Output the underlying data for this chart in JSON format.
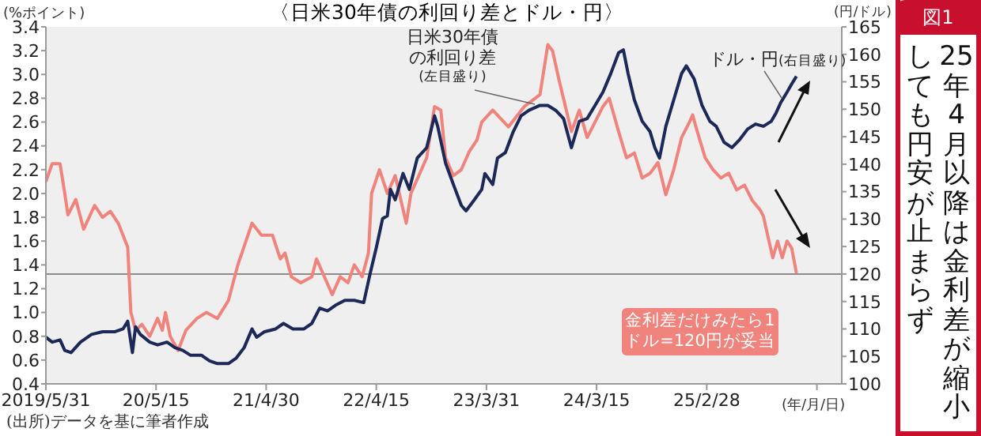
{
  "chart_data": {
    "type": "line",
    "title": "〈日米30年債の利回り差とドル・円〉",
    "ylabel": "(%ポイント)",
    "y2label": "(円/ドル)",
    "xlabel": "(年/月/日)",
    "annotations": [
      "(左目盛り)",
      "(右目盛り)",
      "図1",
      "25年4月以降は金利差が縮小しても円安が止まらず",
      "(出所)データを基に筆者作成"
    ],
    "xlim": [
      "2019-05-31",
      "2026-05-03"
    ],
    "xticks": [
      {
        "value": "2019-05-31",
        "label": "2019/5/31"
      },
      {
        "value": "2020-05-15",
        "label": "20/5/15"
      },
      {
        "value": "2021-04-30",
        "label": "21/4/30"
      },
      {
        "value": "2022-04-15",
        "label": "22/4/15"
      },
      {
        "value": "2023-03-31",
        "label": "23/3/31"
      },
      {
        "value": "2024-03-15",
        "label": "24/3/15"
      },
      {
        "value": "2025-02-28",
        "label": "25/2/28"
      },
      {
        "value": "2026-02-13",
        "label": null
      }
    ],
    "ylim": [
      0.4,
      3.4
    ],
    "yticks": [
      0.4,
      0.6,
      0.8,
      {
        "value": 1,
        "label": "1.0"
      },
      1.2,
      1.4,
      1.6,
      1.8,
      {
        "value": 2,
        "label": "2.0"
      },
      2.2,
      2.4,
      2.6,
      2.8,
      {
        "value": 3,
        "label": "3.0"
      },
      3.2,
      3.4
    ],
    "y2lim": [
      100,
      165
    ],
    "y2ticks": [
      100,
      105,
      110,
      115,
      120,
      125,
      130,
      135,
      140,
      145,
      150,
      155,
      160,
      165
    ],
    "ref_lines": [
      {
        "axis": "y2",
        "value": 120,
        "label": "金利差だけみたら1ドル=120円が妥当",
        "color": "#8c8c8c"
      }
    ],
    "legend": false,
    "grid": false,
    "series": [
      {
        "name": "日米30年債の利回り差",
        "color": "#f0837c",
        "x": [
          "2019-05-31",
          "2019-06-20",
          "2019-07-15",
          "2019-07-30",
          "2019-08-09",
          "2019-09-03",
          "2019-09-28",
          "2019-11-02",
          "2019-11-27",
          "2019-12-22",
          "2020-01-16",
          "2020-01-31",
          "2020-02-15",
          "2020-02-25",
          "2020-03-11",
          "2020-03-31",
          "2020-04-25",
          "2020-05-20",
          "2020-06-04",
          "2020-06-14",
          "2020-06-29",
          "2020-07-24",
          "2020-08-18",
          "2020-09-22",
          "2020-10-22",
          "2020-11-26",
          "2020-12-31",
          "2021-01-30",
          "2021-03-16",
          "2021-04-15",
          "2021-05-20",
          "2021-06-14",
          "2021-06-29",
          "2021-07-19",
          "2021-08-18",
          "2021-09-22",
          "2021-10-07",
          "2021-11-01",
          "2021-11-26",
          "2021-12-21",
          "2022-01-15",
          "2022-02-04",
          "2022-03-01",
          "2022-03-21",
          "2022-03-31",
          "2022-04-25",
          "2022-05-20",
          "2022-06-14",
          "2022-07-19",
          "2022-08-03",
          "2022-08-28",
          "2022-09-22",
          "2022-10-17",
          "2022-11-06",
          "2022-11-21",
          "2022-12-16",
          "2023-01-10",
          "2023-02-04",
          "2023-03-01",
          "2023-03-16",
          "2023-04-20",
          "2023-06-09",
          "2023-07-29",
          "2023-09-17",
          "2023-10-12",
          "2023-10-27",
          "2023-11-16",
          "2023-12-26",
          "2024-01-20",
          "2024-02-14",
          "2024-03-10",
          "2024-04-04",
          "2024-04-24",
          "2024-05-24",
          "2024-06-18",
          "2024-07-13",
          "2024-08-07",
          "2024-09-01",
          "2024-09-26",
          "2024-10-21",
          "2024-11-15",
          "2024-12-10",
          "2025-01-04",
          "2025-01-14",
          "2025-01-29",
          "2025-02-23",
          "2025-03-20",
          "2025-04-14",
          "2025-05-09",
          "2025-06-03",
          "2025-06-28",
          "2025-07-23",
          "2025-08-17",
          "2025-08-27",
          "2025-09-11",
          "2025-09-26",
          "2025-10-11",
          "2025-10-26",
          "2025-11-10",
          "2025-11-25",
          "2025-12-10"
        ],
        "values": [
          2.1,
          2.25,
          2.25,
          2.0,
          1.82,
          1.95,
          1.7,
          1.9,
          1.8,
          1.85,
          1.75,
          1.65,
          1.55,
          1.0,
          0.85,
          0.9,
          0.8,
          0.95,
          0.85,
          1.0,
          0.8,
          0.68,
          0.85,
          0.95,
          1.0,
          0.95,
          1.1,
          1.4,
          1.75,
          1.65,
          1.65,
          1.45,
          1.5,
          1.3,
          1.25,
          1.3,
          1.45,
          1.3,
          1.15,
          1.3,
          1.25,
          1.4,
          1.3,
          1.5,
          2.0,
          2.2,
          2.0,
          2.15,
          1.75,
          2.0,
          2.15,
          2.3,
          2.73,
          2.7,
          2.3,
          2.15,
          2.2,
          2.35,
          2.45,
          2.6,
          2.7,
          2.56,
          2.73,
          2.83,
          3.25,
          3.2,
          2.96,
          2.52,
          2.7,
          2.47,
          2.6,
          2.73,
          2.8,
          2.52,
          2.3,
          2.34,
          2.13,
          2.17,
          2.26,
          1.99,
          2.2,
          2.47,
          2.6,
          2.66,
          2.52,
          2.3,
          2.2,
          2.13,
          2.17,
          2.03,
          2.07,
          1.94,
          1.86,
          1.81,
          1.63,
          1.46,
          1.6,
          1.46,
          1.6,
          1.54,
          1.33
        ]
      },
      {
        "name": "ドル・円",
        "color": "#1c2857",
        "axis": "y2",
        "x": [
          "2019-05-31",
          "2019-06-20",
          "2019-07-15",
          "2019-07-30",
          "2019-08-19",
          "2019-09-18",
          "2019-10-23",
          "2019-11-27",
          "2020-01-06",
          "2020-01-31",
          "2020-02-15",
          "2020-03-01",
          "2020-03-11",
          "2020-03-26",
          "2020-04-25",
          "2020-05-20",
          "2020-06-19",
          "2020-07-14",
          "2020-08-08",
          "2020-09-02",
          "2020-10-07",
          "2020-11-01",
          "2020-11-26",
          "2020-12-31",
          "2021-01-25",
          "2021-02-19",
          "2021-03-16",
          "2021-03-31",
          "2021-04-25",
          "2021-05-30",
          "2021-06-24",
          "2021-07-24",
          "2021-08-28",
          "2021-09-22",
          "2021-10-17",
          "2021-11-11",
          "2021-12-06",
          "2022-01-05",
          "2022-02-04",
          "2022-03-06",
          "2022-03-26",
          "2022-04-15",
          "2022-05-05",
          "2022-05-20",
          "2022-05-30",
          "2022-06-14",
          "2022-07-09",
          "2022-07-29",
          "2022-08-23",
          "2022-09-22",
          "2022-10-17",
          "2022-10-27",
          "2022-11-21",
          "2022-12-16",
          "2023-01-10",
          "2023-01-25",
          "2023-02-19",
          "2023-03-16",
          "2023-03-26",
          "2023-04-20",
          "2023-05-05",
          "2023-05-30",
          "2023-06-24",
          "2023-07-19",
          "2023-08-13",
          "2023-09-17",
          "2023-10-12",
          "2023-11-06",
          "2023-12-01",
          "2023-12-26",
          "2024-01-20",
          "2024-02-14",
          "2024-03-10",
          "2024-04-04",
          "2024-04-29",
          "2024-05-24",
          "2024-06-08",
          "2024-06-23",
          "2024-07-13",
          "2024-08-07",
          "2024-09-01",
          "2024-09-16",
          "2024-10-01",
          "2024-10-21",
          "2024-11-15",
          "2024-12-10",
          "2024-12-25",
          "2025-01-19",
          "2025-02-13",
          "2025-03-10",
          "2025-03-30",
          "2025-04-24",
          "2025-05-19",
          "2025-06-13",
          "2025-07-08",
          "2025-08-02",
          "2025-08-27",
          "2025-09-21",
          "2025-10-06",
          "2025-10-21",
          "2025-11-10",
          "2025-11-25",
          "2025-12-10"
        ],
        "values": [
          108.5,
          107.6,
          108,
          106.1,
          105.7,
          107.6,
          109,
          109.5,
          109.5,
          110,
          111.4,
          105.7,
          110.4,
          109,
          107.6,
          107.1,
          107.6,
          106.6,
          106.1,
          105.2,
          105.2,
          104.2,
          103.7,
          103.7,
          104.7,
          106.6,
          110,
          108.5,
          109.5,
          110,
          111,
          110,
          110,
          111,
          113.8,
          113.3,
          114.3,
          115.2,
          115.2,
          114.8,
          120,
          124.8,
          130.1,
          130.6,
          135.4,
          133.5,
          138.3,
          135.4,
          141.1,
          143,
          148.8,
          146.9,
          140.2,
          136.3,
          132.5,
          131.5,
          133.4,
          135.4,
          138.3,
          136.3,
          141.1,
          142.1,
          145.9,
          148.8,
          149.8,
          150.7,
          150.7,
          149.8,
          148.3,
          143,
          147.8,
          148.3,
          150.7,
          153.1,
          156.5,
          160.3,
          160.8,
          156.5,
          151.7,
          147.8,
          145.9,
          143,
          141.1,
          146.9,
          151.7,
          156.5,
          157.9,
          155.5,
          150.7,
          147.8,
          146.9,
          144,
          143,
          144.5,
          146.4,
          147.3,
          146.9,
          147.8,
          149.3,
          151.2,
          153.1,
          154.6,
          156
        ]
      }
    ]
  }
}
